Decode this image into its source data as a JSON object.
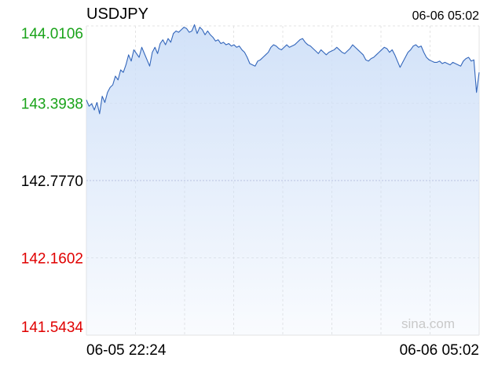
{
  "chart_data": {
    "type": "area",
    "title": "USDJPY",
    "timestamp": "06-06 05:02",
    "watermark": "sina.com",
    "x_labels": [
      "06-05 22:24",
      "06-06 05:02"
    ],
    "y_ticks": [
      {
        "label": "144.0106",
        "value": 144.0106,
        "color": "#1aa31a"
      },
      {
        "label": "143.3938",
        "value": 143.3938,
        "color": "#1aa31a"
      },
      {
        "label": "142.7770",
        "value": 142.777,
        "color": "#000000"
      },
      {
        "label": "142.1602",
        "value": 142.1602,
        "color": "#e00000"
      },
      {
        "label": "141.5434",
        "value": 141.5434,
        "color": "#e00000"
      }
    ],
    "ylim": [
      141.5434,
      144.0106
    ],
    "reference_value": 142.777,
    "grid": true,
    "line_color": "#3366bb",
    "fill_color": "#cfe0f8",
    "series": [
      {
        "values": [
          143.42,
          143.37,
          143.39,
          143.34,
          143.4,
          143.31,
          143.45,
          143.4,
          143.48,
          143.52,
          143.54,
          143.61,
          143.58,
          143.66,
          143.64,
          143.7,
          143.78,
          143.73,
          143.82,
          143.79,
          143.76,
          143.84,
          143.79,
          143.74,
          143.69,
          143.8,
          143.84,
          143.79,
          143.87,
          143.9,
          143.86,
          143.91,
          143.88,
          143.95,
          143.97,
          143.96,
          143.98,
          144.0,
          143.99,
          143.96,
          143.97,
          144.02,
          143.95,
          144.0,
          143.98,
          143.94,
          143.97,
          143.94,
          143.92,
          143.89,
          143.9,
          143.87,
          143.88,
          143.86,
          143.87,
          143.85,
          143.86,
          143.84,
          143.85,
          143.82,
          143.8,
          143.76,
          143.71,
          143.7,
          143.69,
          143.73,
          143.74,
          143.76,
          143.78,
          143.8,
          143.84,
          143.86,
          143.85,
          143.83,
          143.82,
          143.84,
          143.86,
          143.84,
          143.85,
          143.86,
          143.88,
          143.9,
          143.91,
          143.88,
          143.86,
          143.85,
          143.83,
          143.81,
          143.79,
          143.82,
          143.8,
          143.78,
          143.8,
          143.81,
          143.82,
          143.84,
          143.82,
          143.8,
          143.79,
          143.81,
          143.83,
          143.86,
          143.84,
          143.82,
          143.8,
          143.78,
          143.74,
          143.73,
          143.75,
          143.76,
          143.78,
          143.8,
          143.82,
          143.84,
          143.83,
          143.8,
          143.82,
          143.78,
          143.73,
          143.68,
          143.72,
          143.76,
          143.8,
          143.82,
          143.85,
          143.86,
          143.84,
          143.85,
          143.8,
          143.76,
          143.74,
          143.73,
          143.72,
          143.72,
          143.73,
          143.71,
          143.72,
          143.71,
          143.7,
          143.72,
          143.71,
          143.7,
          143.69,
          143.73,
          143.75,
          143.76,
          143.73,
          143.74,
          143.48,
          143.64
        ]
      }
    ]
  }
}
